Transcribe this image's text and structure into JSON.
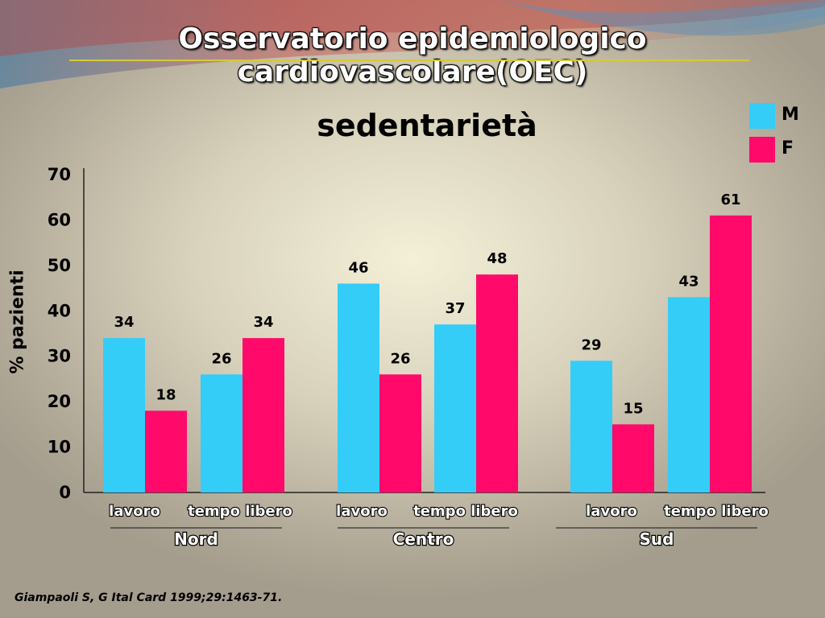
{
  "slide": {
    "title": "Osservatorio epidemiologico cardiovascolare(OEC)",
    "source": "Giampaoli S, G Ital Card 1999;29:1463-71."
  },
  "colors": {
    "M": "#33cdf7",
    "F": "#ff0a6a"
  },
  "chart_data": {
    "type": "bar",
    "title": "sedentarietà",
    "ylabel": "% pazienti",
    "xlabel": "",
    "ylim": [
      0,
      70
    ],
    "yticks": [
      0,
      10,
      20,
      30,
      40,
      50,
      60,
      70
    ],
    "grid": false,
    "legend_position": "top-right",
    "groups": [
      "Nord",
      "Centro",
      "Sud"
    ],
    "categories": [
      "lavoro",
      "tempo libero",
      "lavoro",
      "tempo libero",
      "lavoro",
      "tempo libero"
    ],
    "series": [
      {
        "name": "M",
        "values": [
          34,
          26,
          46,
          37,
          29,
          43
        ]
      },
      {
        "name": "F",
        "values": [
          18,
          34,
          26,
          48,
          15,
          61
        ]
      }
    ]
  }
}
